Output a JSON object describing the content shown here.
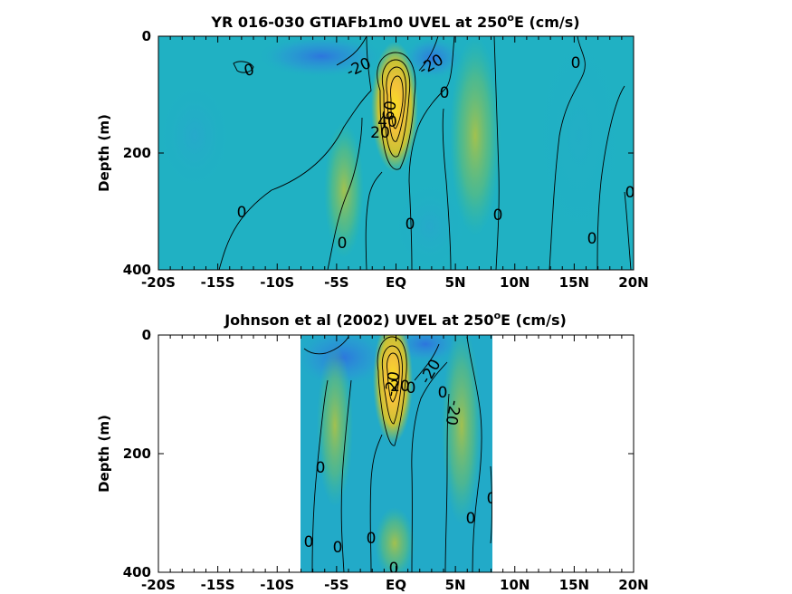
{
  "chart_data": [
    {
      "type": "heatmap",
      "title": "YR 016-030 GTIAFb1m0 UVEL at 250",
      "title_super": "o",
      "title_suffix": "E (cm/s)",
      "ylabel": "Depth (m)",
      "xlabel": "",
      "xlim": [
        -20,
        20
      ],
      "ylim": [
        400,
        0
      ],
      "x_ticks": [
        -20,
        -15,
        -10,
        -5,
        0,
        5,
        10,
        15,
        20
      ],
      "x_tick_labels": [
        "-20S",
        "-15S",
        "-10S",
        "-5S",
        "EQ",
        "5N",
        "10N",
        "15N",
        "20N"
      ],
      "y_ticks": [
        0,
        200,
        400
      ],
      "y_tick_labels": [
        "0",
        "200",
        "400"
      ],
      "data_extent_x": [
        -20,
        20
      ],
      "colormap": [
        "#3d2e9e",
        "#2c7fd8",
        "#1fb0c6",
        "#39be8c",
        "#a6c43a",
        "#f0b83b",
        "#f8e022"
      ],
      "contour_labels": [
        "0",
        "-20",
        "-20",
        "0",
        "0",
        "0",
        "0",
        "0",
        "0",
        "0",
        "60",
        "40",
        "20"
      ],
      "features": [
        {
          "name": "equatorial undercurrent core",
          "x": 0,
          "depth": 110,
          "speed": 100
        },
        {
          "name": "south equatorial current",
          "x": -3,
          "depth": 40,
          "speed": -30
        },
        {
          "name": "south equatorial current north",
          "x": 2.5,
          "depth": 40,
          "speed": -25
        },
        {
          "name": "northern subsurface countercurrent",
          "x": 5.5,
          "depth": 120,
          "speed": 25
        },
        {
          "name": "southern subsurface countercurrent",
          "x": -4.5,
          "depth": 180,
          "speed": 15
        }
      ]
    },
    {
      "type": "heatmap",
      "title": "Johnson et al (2002) UVEL at 250",
      "title_super": "o",
      "title_suffix": "E (cm/s)",
      "ylabel": "Depth (m)",
      "xlabel": "",
      "xlim": [
        -20,
        20
      ],
      "ylim": [
        400,
        0
      ],
      "x_ticks": [
        -20,
        -15,
        -10,
        -5,
        0,
        5,
        10,
        15,
        20
      ],
      "x_tick_labels": [
        "-20S",
        "-15S",
        "-10S",
        "-5S",
        "EQ",
        "5N",
        "10N",
        "15N",
        "20N"
      ],
      "y_ticks": [
        0,
        200,
        400
      ],
      "y_tick_labels": [
        "0",
        "200",
        "400"
      ],
      "data_extent_x": [
        -8,
        8
      ],
      "colormap": [
        "#3d2e9e",
        "#2c7fd8",
        "#1fb0c6",
        "#39be8c",
        "#a6c43a",
        "#f0b83b",
        "#f8e022"
      ],
      "contour_labels": [
        "-20",
        "20",
        "-20",
        "0",
        "0",
        "0",
        "0",
        "0",
        "0",
        "0",
        "0",
        "0"
      ],
      "features": [
        {
          "name": "equatorial undercurrent core",
          "x": 0,
          "depth": 70,
          "speed": 100
        },
        {
          "name": "south equatorial current",
          "x": 2.5,
          "depth": 10,
          "speed": -30
        },
        {
          "name": "northern subsurface countercurrent",
          "x": 5,
          "depth": 150,
          "speed": 25
        },
        {
          "name": "southern subsurface countercurrent",
          "x": -4.5,
          "depth": 200,
          "speed": 15
        }
      ]
    }
  ]
}
